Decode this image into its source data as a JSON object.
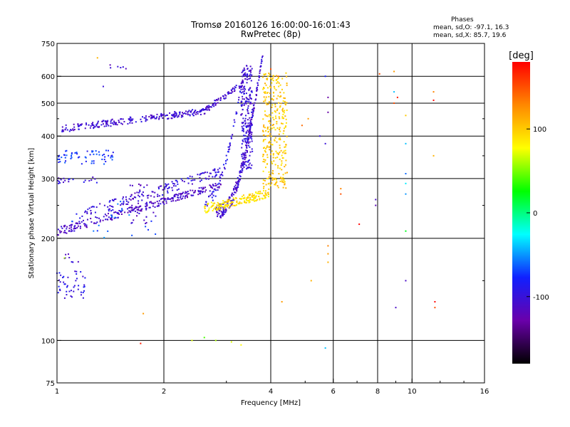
{
  "header": {
    "title": "Tromsø 20160126 16:00:00-16:01:43",
    "subtitle": "RwPretec (8p)",
    "stats_heading": "Phases",
    "stats_line1": "mean, sd,O: -97.1, 16.3",
    "stats_line2": "mean, sd,X: 85.7, 19.6"
  },
  "chart_data": {
    "type": "scatter",
    "xlabel": "Frequency [MHz]",
    "ylabel": "Stationary phase Virtual Height [km]",
    "xscale": "log",
    "yscale": "log",
    "xlim": [
      1,
      16
    ],
    "ylim": [
      75,
      750
    ],
    "xticks": [
      1,
      2,
      4,
      6,
      8,
      10,
      16
    ],
    "yticks": [
      75,
      100,
      200,
      300,
      400,
      500,
      600,
      750
    ],
    "x_gridlines": [
      2,
      4,
      6,
      8,
      10
    ],
    "y_gridlines": [
      100,
      200,
      300,
      400,
      500,
      600
    ],
    "grid": true,
    "colorbar": {
      "label": "[deg]",
      "ticks": [
        -100,
        0,
        100
      ],
      "range": [
        -180,
        180
      ],
      "colors": [
        "#000000",
        "#6a00aa",
        "#1020ff",
        "#00ffff",
        "#00ff00",
        "#ffff00",
        "#ff8800",
        "#ff0000"
      ]
    },
    "series": [
      {
        "x_range": [
          1.03,
          2.6
        ],
        "y": "420*(x/1.03)^0.13",
        "phase": -105,
        "count": 230,
        "spread": 10
      },
      {
        "x_range": [
          2.6,
          3.4
        ],
        "y": "475*(x/2.6)^0.75",
        "phase": -105,
        "count": 70,
        "spread": 10
      },
      {
        "x_range": [
          3.3,
          3.55
        ],
        "y_range": [
          320,
          650
        ],
        "phase": -103,
        "count": 230,
        "spread": 0
      },
      {
        "x_range": [
          1.0,
          2.9
        ],
        "y": "209*(x)^0.3",
        "phase": -110,
        "count": 260,
        "spread": 6
      },
      {
        "x_range": [
          1.1,
          2.9
        ],
        "y": "222*(x)^0.33",
        "phase": -100,
        "count": 150,
        "spread": 10
      },
      {
        "x_range": [
          2.8,
          3.8
        ],
        "y": "240+460*((x-2.8)/1.0)^2.6",
        "phase": -105,
        "count": 220,
        "spread": 12
      },
      {
        "x_range": [
          2.6,
          3.3
        ],
        "y": "255+300*((x-2.6)/0.7)^2.2",
        "phase": -95,
        "count": 60,
        "spread": 10
      },
      {
        "x_range": [
          2.6,
          3.95
        ],
        "y": "245+20*(x-2.6)",
        "phase": 90,
        "count": 180,
        "spread": 8
      },
      {
        "x_range": [
          3.8,
          4.45
        ],
        "y_range": [
          280,
          620
        ],
        "phase": 100,
        "count": 300,
        "spread": 0
      },
      {
        "x_range": [
          1.0,
          1.45
        ],
        "y_range": [
          330,
          365
        ],
        "phase": -75,
        "count": 60,
        "spread": 0
      },
      {
        "x_range": [
          1.0,
          1.3
        ],
        "y_range": [
          290,
          305
        ],
        "phase": -100,
        "count": 20,
        "spread": 0
      },
      {
        "x_range": [
          1.0,
          1.2
        ],
        "y_range": [
          132,
          160
        ],
        "phase": -95,
        "count": 45,
        "spread": 0
      },
      {
        "x_range": [
          1.05,
          1.15
        ],
        "y_range": [
          170,
          180
        ],
        "phase": -110,
        "count": 8,
        "spread": 0
      },
      {
        "x_range": [
          1.6,
          1.95
        ],
        "y_range": [
          215,
          290
        ],
        "phase": -110,
        "count": 40,
        "spread": 0
      },
      {
        "x_range": [
          1.1,
          1.9
        ],
        "y_range": [
          200,
          260
        ],
        "phase": -60,
        "count": 20,
        "spread": 0
      },
      {
        "x_range": [
          1.4,
          1.6
        ],
        "y_range": [
          630,
          660
        ],
        "phase": -110,
        "count": 6,
        "spread": 0
      }
    ],
    "isolated_points": [
      {
        "x": 1.3,
        "y": 680,
        "phase": 110
      },
      {
        "x": 1.35,
        "y": 560,
        "phase": -100
      },
      {
        "x": 1.75,
        "y": 120,
        "phase": 120
      },
      {
        "x": 1.72,
        "y": 98,
        "phase": 170
      },
      {
        "x": 1.05,
        "y": 175,
        "phase": 60
      },
      {
        "x": 2.4,
        "y": 100,
        "phase": 70
      },
      {
        "x": 2.6,
        "y": 102,
        "phase": 40
      },
      {
        "x": 2.8,
        "y": 100,
        "phase": 60
      },
      {
        "x": 3.1,
        "y": 99,
        "phase": 70
      },
      {
        "x": 3.3,
        "y": 97,
        "phase": 80
      },
      {
        "x": 4.0,
        "y": 630,
        "phase": 150
      },
      {
        "x": 4.2,
        "y": 600,
        "phase": 140
      },
      {
        "x": 4.3,
        "y": 130,
        "phase": 120
      },
      {
        "x": 4.9,
        "y": 430,
        "phase": 140
      },
      {
        "x": 5.1,
        "y": 450,
        "phase": 120
      },
      {
        "x": 5.2,
        "y": 150,
        "phase": 110
      },
      {
        "x": 5.5,
        "y": 400,
        "phase": -100
      },
      {
        "x": 5.7,
        "y": 380,
        "phase": -100
      },
      {
        "x": 5.8,
        "y": 470,
        "phase": -130
      },
      {
        "x": 5.8,
        "y": 520,
        "phase": -130
      },
      {
        "x": 5.7,
        "y": 600,
        "phase": -80
      },
      {
        "x": 5.8,
        "y": 180,
        "phase": 120
      },
      {
        "x": 5.8,
        "y": 170,
        "phase": 110
      },
      {
        "x": 5.8,
        "y": 190,
        "phase": 130
      },
      {
        "x": 5.7,
        "y": 95,
        "phase": -40
      },
      {
        "x": 6.3,
        "y": 280,
        "phase": 130
      },
      {
        "x": 6.3,
        "y": 270,
        "phase": 150
      },
      {
        "x": 7.1,
        "y": 220,
        "phase": 180
      },
      {
        "x": 7.9,
        "y": 250,
        "phase": -120
      },
      {
        "x": 7.9,
        "y": 260,
        "phase": -110
      },
      {
        "x": 8.1,
        "y": 610,
        "phase": 150
      },
      {
        "x": 8.9,
        "y": 620,
        "phase": 120
      },
      {
        "x": 8.9,
        "y": 540,
        "phase": -40
      },
      {
        "x": 8.9,
        "y": 500,
        "phase": 150
      },
      {
        "x": 9.1,
        "y": 520,
        "phase": 170
      },
      {
        "x": 9.0,
        "y": 125,
        "phase": -110
      },
      {
        "x": 9.6,
        "y": 270,
        "phase": -50
      },
      {
        "x": 9.6,
        "y": 290,
        "phase": -30
      },
      {
        "x": 9.6,
        "y": 310,
        "phase": -60
      },
      {
        "x": 9.6,
        "y": 380,
        "phase": -40
      },
      {
        "x": 9.6,
        "y": 460,
        "phase": 100
      },
      {
        "x": 9.6,
        "y": 210,
        "phase": 20
      },
      {
        "x": 9.6,
        "y": 150,
        "phase": -110
      },
      {
        "x": 11.5,
        "y": 540,
        "phase": 130
      },
      {
        "x": 11.5,
        "y": 510,
        "phase": 180
      },
      {
        "x": 11.5,
        "y": 350,
        "phase": 110
      },
      {
        "x": 11.6,
        "y": 130,
        "phase": 180
      },
      {
        "x": 11.6,
        "y": 125,
        "phase": 150
      }
    ]
  }
}
